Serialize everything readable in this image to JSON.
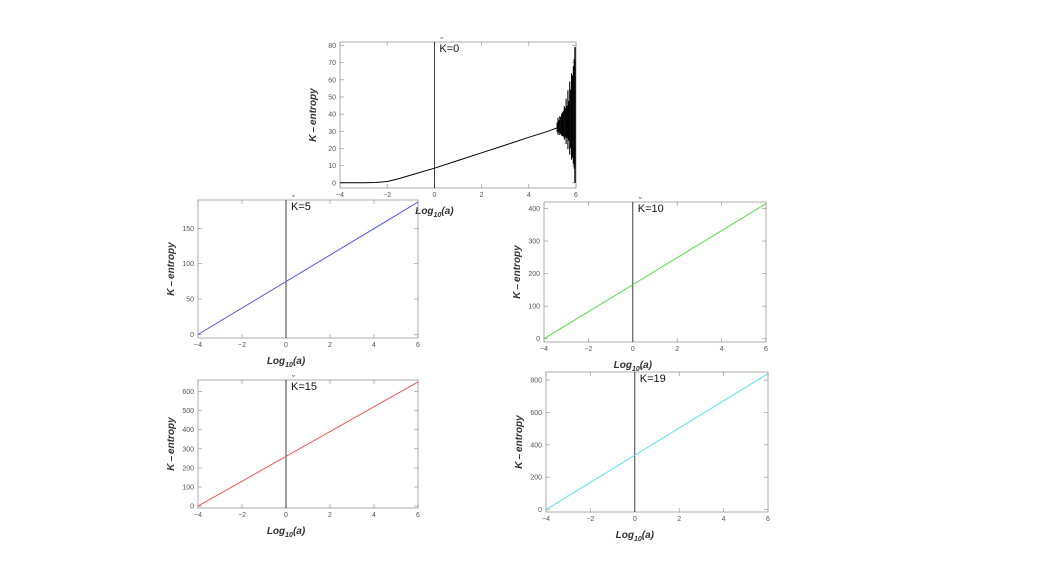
{
  "chart_data": [
    {
      "type": "line",
      "annotation": "K=0",
      "xlabel": "Log10(a)",
      "ylabel": "K-entropy",
      "xlim": [
        -4,
        6
      ],
      "ylim": [
        -3,
        82
      ],
      "xticks": [
        -4,
        -2,
        0,
        2,
        4,
        6
      ],
      "yticks": [
        0,
        10,
        20,
        30,
        40,
        50,
        60,
        70,
        80
      ],
      "color": "#000000",
      "x": [
        -4,
        -3,
        -2.5,
        -2,
        -1.5,
        -1,
        0,
        1,
        2,
        3,
        4,
        4.8,
        5.2
      ],
      "y": [
        0,
        0,
        0.2,
        0.8,
        2.5,
        4.5,
        8.5,
        13,
        17.5,
        22,
        26.5,
        30,
        32
      ],
      "noise_region": {
        "x": [
          5.2,
          6
        ],
        "ymin": 0,
        "ymax": 79
      }
    },
    {
      "type": "line",
      "annotation": "K=5",
      "xlabel": "Log10(a)",
      "ylabel": "K-entropy",
      "xlim": [
        -4,
        6
      ],
      "ylim": [
        -5,
        190
      ],
      "xticks": [
        -4,
        -2,
        0,
        2,
        4,
        6
      ],
      "yticks": [
        0,
        50,
        100,
        150
      ],
      "color": "#5555ee",
      "x": [
        -4,
        6
      ],
      "y": [
        0,
        187
      ]
    },
    {
      "type": "line",
      "annotation": "K=10",
      "xlabel": "Log10(a)",
      "ylabel": "K-entropy",
      "xlim": [
        -4,
        6
      ],
      "ylim": [
        -10,
        420
      ],
      "xticks": [
        -4,
        -2,
        0,
        2,
        4,
        6
      ],
      "yticks": [
        0,
        100,
        200,
        300,
        400
      ],
      "color": "#55dd44",
      "x": [
        -4,
        6
      ],
      "y": [
        0,
        415
      ]
    },
    {
      "type": "line",
      "annotation": "K=15",
      "xlabel": "Log10(a)",
      "ylabel": "K-entropy",
      "xlim": [
        -4,
        6
      ],
      "ylim": [
        -10,
        660
      ],
      "xticks": [
        -4,
        -2,
        0,
        2,
        4,
        6
      ],
      "yticks": [
        0,
        100,
        200,
        300,
        400,
        500,
        600
      ],
      "color": "#ee5555",
      "x": [
        -4,
        6
      ],
      "y": [
        0,
        650
      ]
    },
    {
      "type": "line",
      "annotation": "K=19",
      "xlabel": "Log10(a)",
      "ylabel": "K-entropy",
      "xlim": [
        -4,
        6
      ],
      "ylim": [
        -15,
        850
      ],
      "xticks": [
        -4,
        -2,
        0,
        2,
        4,
        6
      ],
      "yticks": [
        0,
        200,
        400,
        600,
        800
      ],
      "color": "#55e5ee",
      "x": [
        -4,
        6
      ],
      "y": [
        0,
        840
      ]
    }
  ]
}
